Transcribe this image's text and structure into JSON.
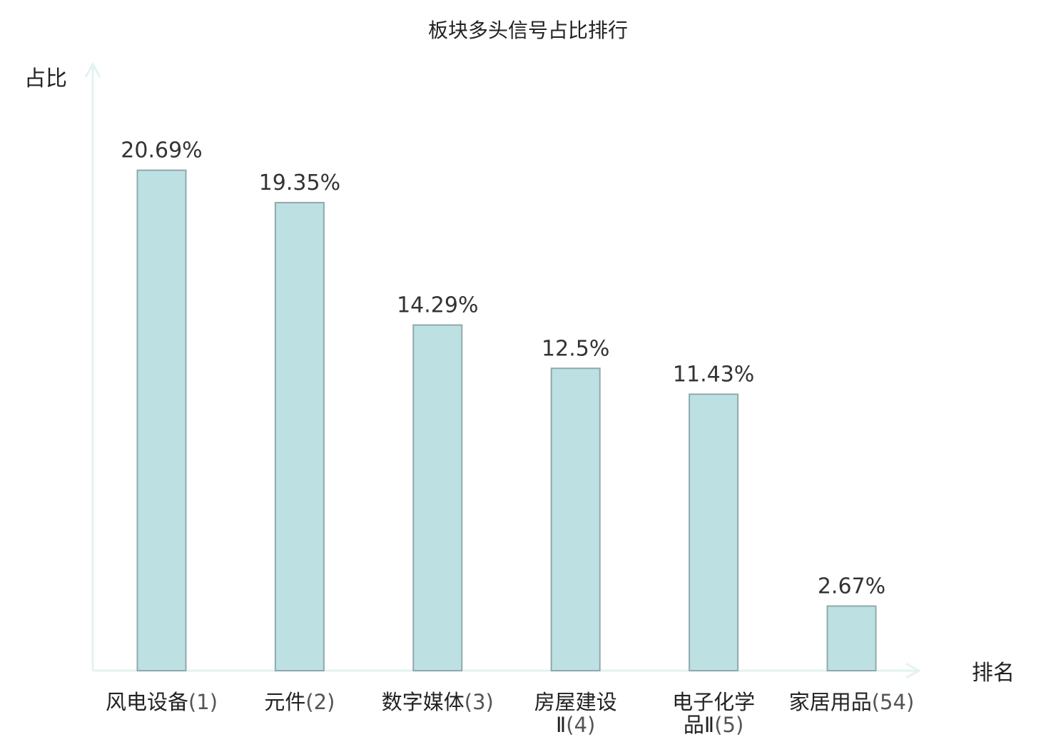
{
  "chart_data": {
    "type": "bar",
    "title": "板块多头信号占比排行",
    "xlabel": "排名",
    "ylabel": "占比",
    "ylim": [
      0,
      25
    ],
    "grid": false,
    "legend": "none",
    "categories": [
      {
        "name": "风电设备",
        "rank": "(1)",
        "highlight": false
      },
      {
        "name": "元件",
        "rank": "(2)",
        "highlight": false
      },
      {
        "name": "数字媒体",
        "rank": "(3)",
        "highlight": false
      },
      {
        "name": "房屋建设Ⅱ",
        "rank": "(4)",
        "highlight": false
      },
      {
        "name": "电子化学品Ⅱ",
        "rank": "(5)",
        "highlight": false
      },
      {
        "name": "家居用品",
        "rank": "(54)",
        "highlight": true
      }
    ],
    "values": [
      20.69,
      19.35,
      14.29,
      12.5,
      11.43,
      2.67
    ],
    "value_labels": [
      "20.69%",
      "19.35%",
      "14.29%",
      "12.5%",
      "11.43%",
      "2.67%"
    ],
    "colors": {
      "bar_fill": "#bde1e3",
      "bar_stroke": "#8fa9ab",
      "axis": "#e2f3f1",
      "highlight": "#e02020",
      "text": "#222222",
      "rank_text": "#555555",
      "value_text": "#333333"
    }
  }
}
